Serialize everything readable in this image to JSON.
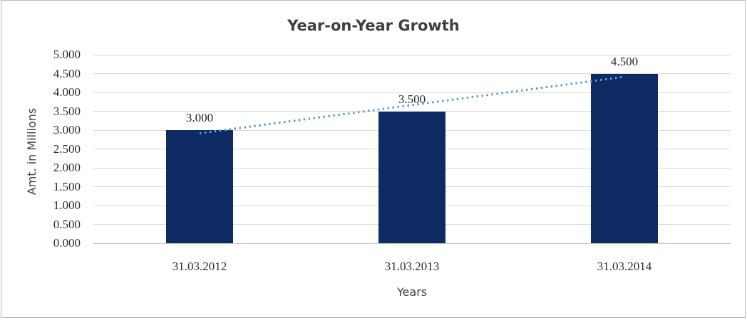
{
  "window": {
    "background": "#ffffff",
    "border_color": "#b9b9b9"
  },
  "chart_data": {
    "type": "bar",
    "title": "Year-on-Year Growth",
    "xlabel": "Years",
    "ylabel": "Amt. in Millions",
    "categories": [
      "31.03.2012",
      "31.03.2013",
      "31.03.2014"
    ],
    "values": [
      3.0,
      3.5,
      4.5
    ],
    "data_labels": [
      "3.000",
      "3.500",
      "4.500"
    ],
    "y_ticks": [
      "5.000",
      "4.500",
      "4.000",
      "3.500",
      "3.000",
      "2.500",
      "2.000",
      "1.500",
      "1.000",
      "0.500",
      "0.000"
    ],
    "ylim": [
      0,
      5
    ],
    "y_step": 0.5,
    "grid": true,
    "legend": "none",
    "bar_color": "#0d2a63",
    "gridline_color": "#d9d9d9",
    "axis_line_color": "#c6c6c6",
    "trendline": {
      "style": "dotted",
      "color": "#5b9bd5",
      "start_value": 2.92,
      "end_value": 4.42
    }
  }
}
